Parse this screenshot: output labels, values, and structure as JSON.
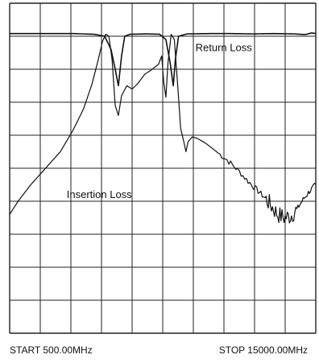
{
  "chart_data": {
    "type": "line",
    "xlabel_start": "START 500.00MHz",
    "xlabel_stop": "STOP 15000.00MHz",
    "x_range": [
      500,
      15000
    ],
    "y_range": [
      0,
      10
    ],
    "x_divisions": 10,
    "y_divisions": 10,
    "grid": true,
    "colors": {
      "trace": "#111111",
      "grid": "#222222",
      "background": "#ffffff"
    },
    "series": [
      {
        "name": "Return Loss",
        "label_anchor": [
          9300,
          8.55
        ],
        "points": [
          [
            500,
            9.08
          ],
          [
            1500,
            9.08
          ],
          [
            2500,
            9.08
          ],
          [
            3500,
            9.08
          ],
          [
            4500,
            9.06
          ],
          [
            5000,
            9.0
          ],
          [
            5300,
            8.6
          ],
          [
            5500,
            8.0
          ],
          [
            5650,
            7.5
          ],
          [
            5800,
            8.4
          ],
          [
            5950,
            9.0
          ],
          [
            6200,
            9.06
          ],
          [
            7000,
            9.07
          ],
          [
            7600,
            9.06
          ],
          [
            7900,
            8.9
          ],
          [
            8100,
            8.2
          ],
          [
            8250,
            7.5
          ],
          [
            8350,
            8.3
          ],
          [
            8500,
            9.0
          ],
          [
            8900,
            9.07
          ],
          [
            10000,
            9.08
          ],
          [
            11000,
            9.08
          ],
          [
            12000,
            9.07
          ],
          [
            13000,
            9.08
          ],
          [
            14000,
            9.07
          ],
          [
            14500,
            9.05
          ],
          [
            14800,
            9.1
          ],
          [
            15000,
            9.08
          ]
        ]
      },
      {
        "name": "Insertion Loss",
        "label_anchor": [
          3200,
          4.1
        ],
        "points": [
          [
            500,
            3.6
          ],
          [
            900,
            4.0
          ],
          [
            1500,
            4.5
          ],
          [
            2200,
            5.0
          ],
          [
            2900,
            5.5
          ],
          [
            3500,
            6.15
          ],
          [
            4000,
            6.8
          ],
          [
            4400,
            7.55
          ],
          [
            4700,
            8.3
          ],
          [
            4900,
            8.85
          ],
          [
            5050,
            9.06
          ],
          [
            5200,
            9.0
          ],
          [
            5350,
            8.3
          ],
          [
            5500,
            6.9
          ],
          [
            5650,
            6.6
          ],
          [
            5800,
            7.2
          ],
          [
            6050,
            7.5
          ],
          [
            6300,
            7.4
          ],
          [
            6550,
            7.55
          ],
          [
            6900,
            7.85
          ],
          [
            7150,
            7.95
          ],
          [
            7350,
            8.05
          ],
          [
            7550,
            8.15
          ],
          [
            7700,
            8.4
          ],
          [
            7800,
            7.6
          ],
          [
            7900,
            7.15
          ],
          [
            8000,
            8.2
          ],
          [
            8150,
            9.06
          ],
          [
            8300,
            8.9
          ],
          [
            8450,
            7.6
          ],
          [
            8600,
            6.2
          ],
          [
            8750,
            5.8
          ],
          [
            8850,
            5.5
          ],
          [
            8950,
            5.8
          ],
          [
            9150,
            5.95
          ],
          [
            9400,
            5.9
          ],
          [
            9800,
            5.75
          ],
          [
            10300,
            5.5
          ],
          [
            10800,
            5.25
          ],
          [
            11300,
            4.95
          ],
          [
            11800,
            4.6
          ],
          [
            12200,
            4.35
          ],
          [
            12600,
            4.1
          ],
          [
            12900,
            3.85
          ],
          [
            13200,
            3.6
          ],
          [
            13500,
            3.5
          ],
          [
            13800,
            3.55
          ],
          [
            14100,
            3.75
          ],
          [
            14400,
            4.05
          ],
          [
            14700,
            4.3
          ],
          [
            15000,
            4.5
          ]
        ]
      }
    ]
  }
}
